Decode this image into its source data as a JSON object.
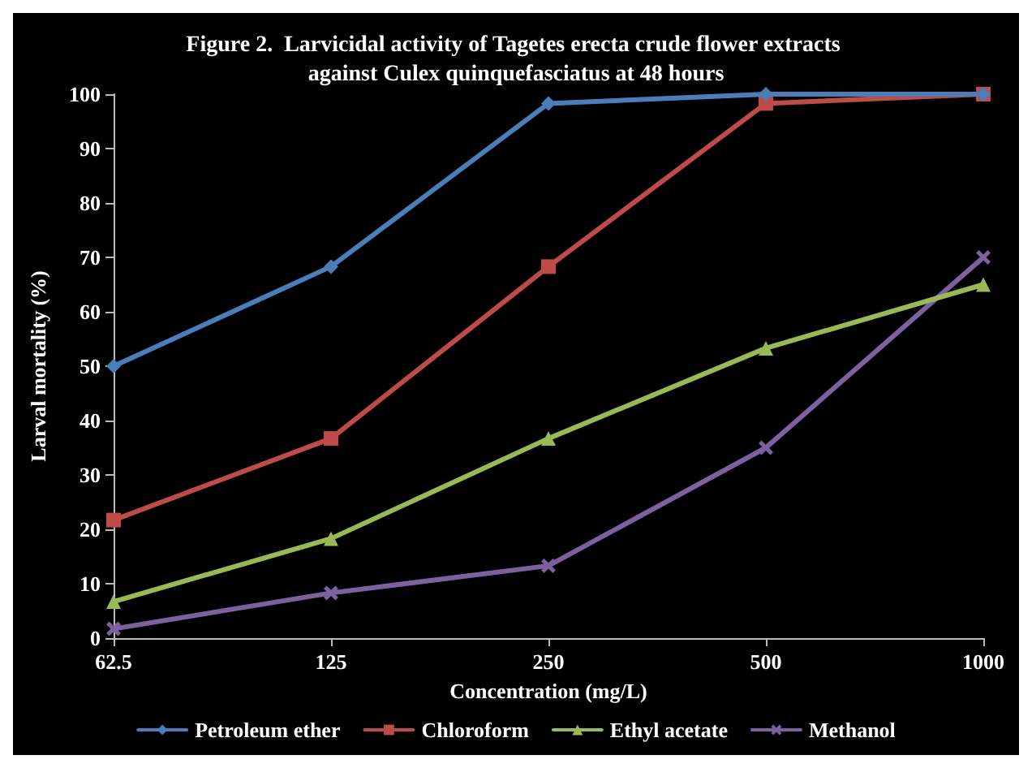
{
  "chart_data": {
    "type": "line",
    "title": "Figure 2.  Larvicidal activity of Tagetes erecta crude flower extracts against Culex quinquefasciatus at 48 hours",
    "xlabel": "Concentration (mg/L)",
    "ylabel": "Larval mortality (%)",
    "categories": [
      "62.5",
      "125",
      "250",
      "500",
      "1000"
    ],
    "series": [
      {
        "name": "Petroleum ether",
        "color": "#4a7ebb",
        "marker": "diamond",
        "values": [
          50,
          68.3,
          98.3,
          100,
          100
        ]
      },
      {
        "name": "Chloroform",
        "color": "#be4b48",
        "marker": "square",
        "values": [
          21.7,
          36.7,
          68.3,
          98.3,
          100
        ]
      },
      {
        "name": "Ethyl acetate",
        "color": "#98b954",
        "marker": "triangle",
        "values": [
          6.7,
          18.3,
          36.7,
          53.3,
          65
        ]
      },
      {
        "name": "Methanol",
        "color": "#7d60a0",
        "marker": "cross",
        "values": [
          1.7,
          8.3,
          13.3,
          35,
          70
        ]
      }
    ],
    "ylim": [
      0,
      100
    ],
    "yticks": [
      0,
      10,
      20,
      30,
      40,
      50,
      60,
      70,
      80,
      90,
      100
    ],
    "grid": false,
    "legend": "bottom",
    "line_style": "solid"
  }
}
